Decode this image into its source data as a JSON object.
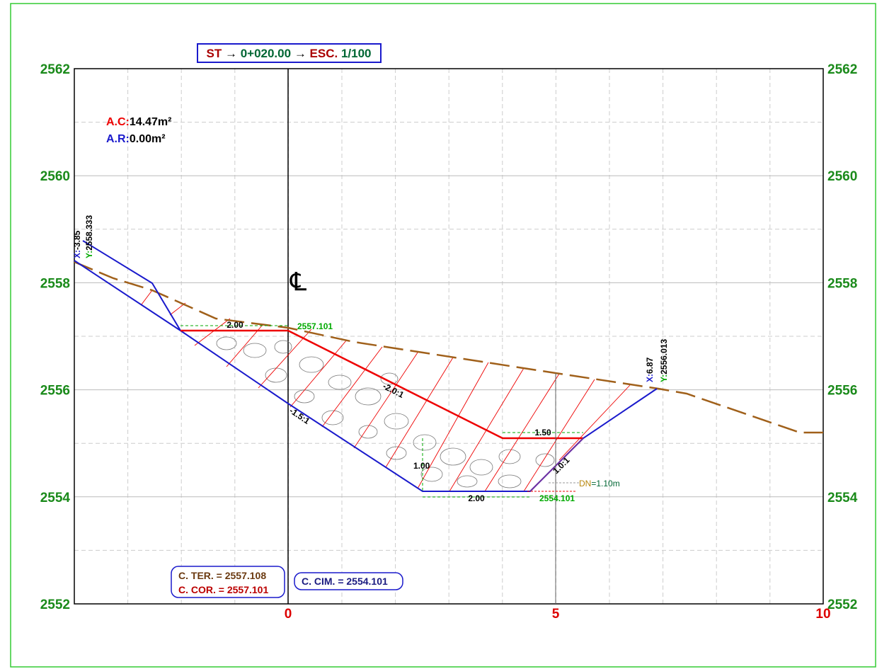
{
  "title": {
    "st": "ST",
    "arrow1": "→",
    "station": "0+020.00",
    "arrow2": "→",
    "esc": "ESC.",
    "scale": "1/100"
  },
  "areas": {
    "cut_label": "A.C:",
    "cut_value": "14.47m²",
    "fill_label": "A.R:",
    "fill_value": "0.00m²"
  },
  "y_ticks": [
    "2552",
    "2554",
    "2556",
    "2558",
    "2560",
    "2562"
  ],
  "x_ticks": [
    "0",
    "5",
    "10"
  ],
  "centerline": "℄",
  "left_point": {
    "x_label": "X:",
    "x_value": "-3.85",
    "y_label": "Y:",
    "y_value": "2558.333"
  },
  "right_point": {
    "x_label": "X:",
    "x_value": "6.87",
    "y_label": "Y:",
    "y_value": "2556.013"
  },
  "dims": {
    "top_width": "2.00",
    "top_elev": "2557.101",
    "slope_cut": "-2.0:1",
    "slope_fill": "-1.5:1",
    "berm": "1.50",
    "depth": "1.00",
    "bottom_width": "2.00",
    "bottom_elev": "2554.101",
    "slope_right": "1.0:1",
    "dn_label": "DN",
    "dn_value": "=1.10m"
  },
  "boxes": {
    "ter": "C. TER. = 2557.108",
    "cor": "C. COR. = 2557.101",
    "cim": "C. CIM. = 2554.101"
  }
}
